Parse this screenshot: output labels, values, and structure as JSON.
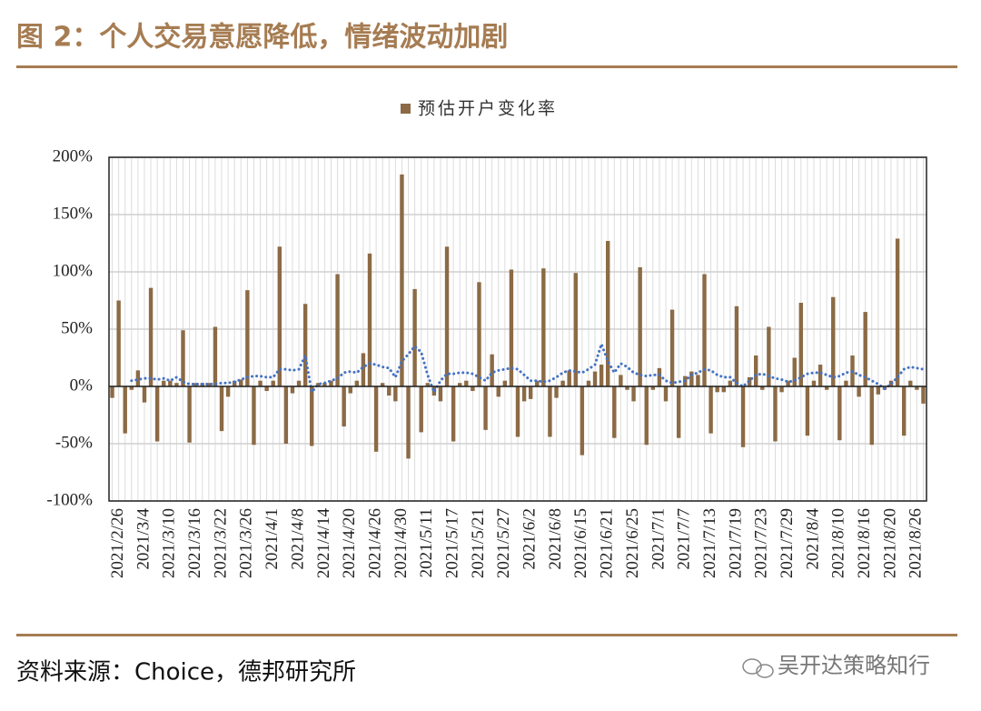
{
  "title": "图 2：个人交易意愿降低，情绪波动加剧",
  "source": "资料来源：Choice，德邦研究所",
  "watermark": "吴开达策略知行",
  "chart_data": {
    "type": "bar",
    "categories": [
      null,
      "2021/2/26",
      null,
      null,
      null,
      "2021/3/4",
      null,
      null,
      null,
      "2021/3/10",
      null,
      null,
      null,
      "2021/3/16",
      null,
      null,
      null,
      "2021/3/22",
      null,
      null,
      null,
      "2021/3/26",
      null,
      null,
      null,
      "2021/4/1",
      null,
      null,
      null,
      "2021/4/8",
      null,
      null,
      null,
      "2021/4/14",
      null,
      null,
      null,
      "2021/4/20",
      null,
      null,
      null,
      "2021/4/26",
      null,
      null,
      null,
      "2021/4/30",
      null,
      null,
      null,
      "2021/5/11",
      null,
      null,
      null,
      "2021/5/17",
      null,
      null,
      null,
      "2021/5/21",
      null,
      null,
      null,
      "2021/5/27",
      null,
      null,
      null,
      "2021/6/2",
      null,
      null,
      null,
      "2021/6/8",
      null,
      null,
      null,
      "2021/6/15",
      null,
      null,
      null,
      "2021/6/21",
      null,
      null,
      null,
      "2021/6/25",
      null,
      null,
      null,
      "2021/7/1",
      null,
      null,
      null,
      "2021/7/7",
      null,
      null,
      null,
      "2021/7/13",
      null,
      null,
      null,
      "2021/7/19",
      null,
      null,
      null,
      "2021/7/23",
      null,
      null,
      null,
      "2021/7/29",
      null,
      null,
      null,
      "2021/8/4",
      null,
      null,
      null,
      "2021/8/10",
      null,
      null,
      null,
      "2021/8/16",
      null,
      null,
      null,
      "2021/8/20",
      null,
      null,
      null,
      "2021/8/26",
      null
    ],
    "series": [
      {
        "name": "预估开户变化率",
        "color": "#8b6a45",
        "values": [
          -10,
          75,
          -41,
          -3,
          14,
          -14,
          86,
          -48,
          5,
          5,
          3,
          49,
          -49,
          3,
          3,
          3,
          52,
          -39,
          -9,
          5,
          6,
          84,
          -51,
          5,
          -4,
          5,
          122,
          -50,
          -6,
          5,
          72,
          -52,
          3,
          3,
          5,
          98,
          -35,
          -6,
          5,
          29,
          116,
          -57,
          3,
          -8,
          -13,
          185,
          -63,
          85,
          -40,
          3,
          -8,
          -13,
          122,
          -48,
          3,
          5,
          -4,
          91,
          -38,
          28,
          -9,
          5,
          102,
          -44,
          -13,
          -11,
          5,
          103,
          -44,
          -10,
          5,
          14,
          99,
          -60,
          5,
          13,
          19,
          127,
          -45,
          10,
          -3,
          -13,
          104,
          -51,
          -3,
          16,
          -13,
          67,
          -45,
          9,
          13,
          10,
          98,
          -41,
          -5,
          -5,
          5,
          70,
          -53,
          8,
          27,
          -3,
          52,
          -48,
          -5,
          5,
          25,
          73,
          -43,
          5,
          19,
          -3,
          78,
          -47,
          5,
          27,
          -9,
          65,
          -51,
          -7,
          -3,
          5,
          129,
          -43,
          5,
          -3,
          -15
        ]
      },
      {
        "type": "line",
        "color": "#4472c4",
        "values": [
          null,
          null,
          null,
          5,
          6,
          7,
          7,
          6,
          7,
          5,
          8,
          4,
          2,
          2,
          2,
          2,
          2,
          3,
          3,
          4,
          6,
          8,
          9,
          9,
          8,
          8,
          15,
          15,
          14,
          15,
          27,
          -5,
          2,
          3,
          5,
          7,
          12,
          13,
          12,
          17,
          20,
          19,
          17,
          16,
          8,
          22,
          28,
          35,
          30,
          10,
          -5,
          5,
          11,
          11,
          12,
          12,
          11,
          8,
          5,
          12,
          14,
          15,
          16,
          15,
          10,
          5,
          5,
          4,
          5,
          8,
          12,
          14,
          13,
          12,
          15,
          19,
          37,
          22,
          12,
          20,
          17,
          12,
          10,
          9,
          10,
          10,
          5,
          3,
          4,
          5,
          10,
          12,
          15,
          14,
          10,
          8,
          8,
          3,
          0,
          5,
          10,
          11,
          9,
          7,
          6,
          4,
          5,
          8,
          11,
          12,
          12,
          10,
          8,
          9,
          12,
          13,
          10,
          8,
          5,
          2,
          -2,
          2,
          8,
          15,
          17,
          16,
          15
        ]
      }
    ],
    "ylim": [
      -100,
      200
    ],
    "yticks": [
      {
        "value": -100,
        "label": "-100%"
      },
      {
        "value": -50,
        "label": "-50%"
      },
      {
        "value": 0,
        "label": "0%"
      },
      {
        "value": 50,
        "label": "50%"
      },
      {
        "value": 100,
        "label": "100%"
      },
      {
        "value": 150,
        "label": "150%"
      },
      {
        "value": 200,
        "label": "200%"
      }
    ],
    "grid": true
  }
}
